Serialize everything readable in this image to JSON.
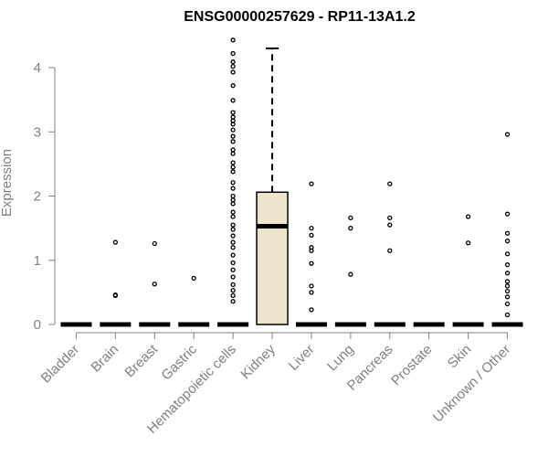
{
  "chart_data": {
    "type": "boxplot",
    "title": "ENSG00000257629 - RP11-13A1.2",
    "xlabel": "",
    "ylabel": "Expression",
    "ylim": [
      0,
      4.45
    ],
    "yticks": [
      0,
      1,
      2,
      3,
      4
    ],
    "grid": false,
    "legend": "none",
    "colors": {
      "box_fill": "#ede6cc",
      "stroke": "#000000",
      "axis": "#808080"
    },
    "categories": [
      "Bladder",
      "Brain",
      "Breast",
      "Gastric",
      "Hematopoietic cells",
      "Kidney",
      "Liver",
      "Lung",
      "Pancreas",
      "Prostate",
      "Skin",
      "Unknown / Other"
    ],
    "boxes": [
      {
        "category": "Bladder",
        "q1": 0,
        "median": 0,
        "q3": 0,
        "whisker_low": 0,
        "whisker_high": 0,
        "outliers": []
      },
      {
        "category": "Brain",
        "q1": 0,
        "median": 0,
        "q3": 0,
        "whisker_low": 0,
        "whisker_high": 0,
        "outliers": [
          1.28,
          0.45,
          0.46
        ]
      },
      {
        "category": "Breast",
        "q1": 0,
        "median": 0,
        "q3": 0,
        "whisker_low": 0,
        "whisker_high": 0,
        "outliers": [
          1.26,
          0.63
        ]
      },
      {
        "category": "Gastric",
        "q1": 0,
        "median": 0,
        "q3": 0,
        "whisker_low": 0,
        "whisker_high": 0,
        "outliers": [
          0.72
        ]
      },
      {
        "category": "Hematopoietic cells",
        "q1": 0,
        "median": 0,
        "q3": 0,
        "whisker_low": 0,
        "whisker_high": 0,
        "outliers": [
          4.43,
          4.22,
          4.09,
          4.02,
          3.93,
          3.72,
          3.49,
          3.3,
          3.23,
          3.17,
          3.12,
          3.03,
          2.93,
          2.85,
          2.72,
          2.66,
          2.52,
          2.45,
          2.38,
          2.21,
          2.12,
          2.0,
          1.94,
          1.88,
          1.75,
          1.68,
          1.55,
          1.48,
          1.38,
          1.28,
          1.2,
          1.08,
          0.96,
          0.85,
          0.74,
          0.62,
          0.53,
          0.45,
          0.36
        ]
      },
      {
        "category": "Kidney",
        "q1": 0,
        "median": 1.53,
        "q3": 2.06,
        "whisker_low": 0,
        "whisker_high": 4.3,
        "outliers": []
      },
      {
        "category": "Liver",
        "q1": 0,
        "median": 0,
        "q3": 0,
        "whisker_low": 0,
        "whisker_high": 0,
        "outliers": [
          2.19,
          1.5,
          1.39,
          1.2,
          1.15,
          0.95,
          0.6,
          0.5,
          0.23
        ]
      },
      {
        "category": "Lung",
        "q1": 0,
        "median": 0,
        "q3": 0,
        "whisker_low": 0,
        "whisker_high": 0,
        "outliers": [
          1.66,
          1.5,
          0.78
        ]
      },
      {
        "category": "Pancreas",
        "q1": 0,
        "median": 0,
        "q3": 0,
        "whisker_low": 0,
        "whisker_high": 0,
        "outliers": [
          2.19,
          1.66,
          1.55,
          1.15
        ]
      },
      {
        "category": "Prostate",
        "q1": 0,
        "median": 0,
        "q3": 0,
        "whisker_low": 0,
        "whisker_high": 0,
        "outliers": []
      },
      {
        "category": "Skin",
        "q1": 0,
        "median": 0,
        "q3": 0,
        "whisker_low": 0,
        "whisker_high": 0,
        "outliers": [
          1.68,
          1.27
        ]
      },
      {
        "category": "Unknown / Other",
        "q1": 0,
        "median": 0,
        "q3": 0,
        "whisker_low": 0,
        "whisker_high": 0,
        "outliers": [
          2.96,
          1.72,
          1.42,
          1.3,
          1.1,
          0.93,
          0.8,
          0.67,
          0.6,
          0.52,
          0.43,
          0.32,
          0.15
        ]
      }
    ]
  }
}
